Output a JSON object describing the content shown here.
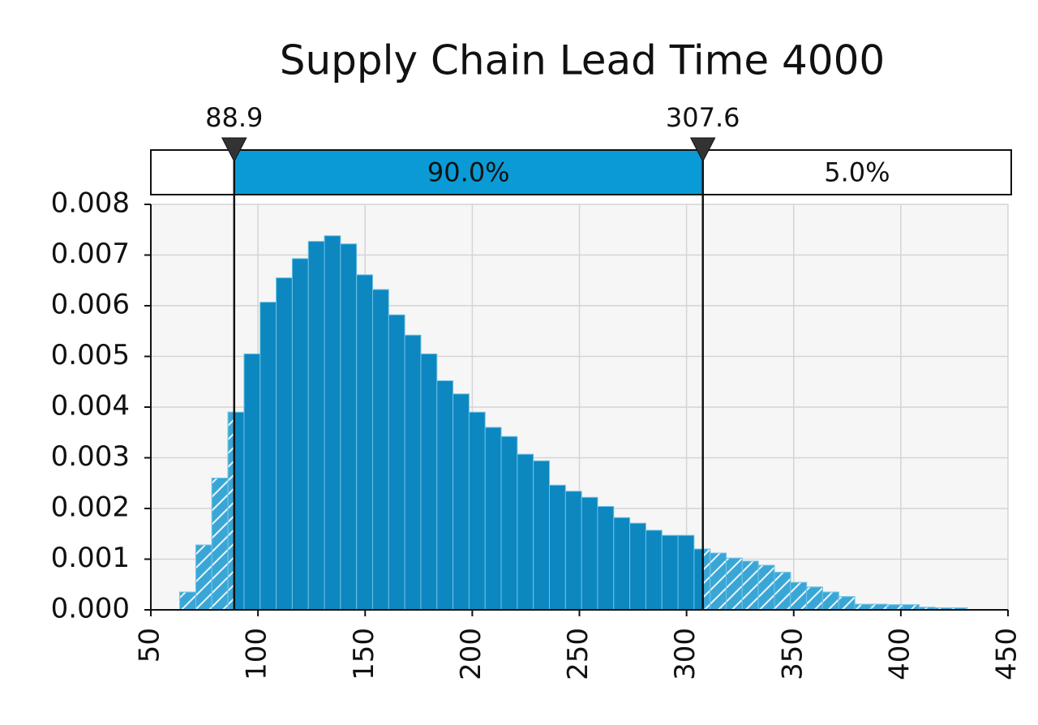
{
  "chart_data": {
    "type": "histogram",
    "title": "Supply Chain Lead Time 4000",
    "bins": [
      63.5,
      71,
      78.5,
      86,
      93.5,
      101,
      108.5,
      116,
      123.5,
      131,
      138.5,
      146,
      153.5,
      161,
      168.5,
      176,
      183.5,
      191,
      198.5,
      206,
      213.5,
      221,
      228.5,
      236,
      243.5,
      251,
      258.5,
      266,
      273.5,
      281,
      288.5,
      296,
      303.5,
      311,
      318.5,
      326,
      333.5,
      341,
      348.5,
      356,
      363.5,
      371,
      378.5,
      386,
      393.5,
      401,
      408.5,
      416,
      423.5,
      431
    ],
    "values": [
      0.00035,
      0.00128,
      0.0026,
      0.0039,
      0.00505,
      0.00607,
      0.00655,
      0.00693,
      0.00727,
      0.00738,
      0.00722,
      0.00661,
      0.00632,
      0.00582,
      0.00542,
      0.00505,
      0.00452,
      0.00426,
      0.0039,
      0.0036,
      0.00342,
      0.00307,
      0.00294,
      0.00246,
      0.00234,
      0.00222,
      0.00204,
      0.00182,
      0.00171,
      0.00157,
      0.00147,
      0.00147,
      0.0012,
      0.00112,
      0.00102,
      0.00096,
      0.00088,
      0.00074,
      0.00054,
      0.00045,
      0.00035,
      0.00026,
      0.00011,
      0.00011,
      0.0001,
      0.0001,
      5e-05,
      4e-05,
      4e-05
    ],
    "color": "#0d87c0",
    "xlim": [
      50,
      450
    ],
    "xticks": [
      50,
      100,
      150,
      200,
      250,
      300,
      350,
      400,
      450
    ],
    "ylim": [
      0,
      0.008
    ],
    "yticks": [
      {
        "value": 0,
        "label": "0.000"
      },
      {
        "value": 0.001,
        "label": "0.001"
      },
      {
        "value": 0.002,
        "label": "0.002"
      },
      {
        "value": 0.003,
        "label": "0.003"
      },
      {
        "value": 0.004,
        "label": "0.004"
      },
      {
        "value": 0.005,
        "label": "0.005"
      },
      {
        "value": 0.006,
        "label": "0.006"
      },
      {
        "value": 0.007,
        "label": "0.007"
      },
      {
        "value": 0.008,
        "label": "0.008"
      }
    ],
    "grid": true,
    "delimiters": [
      88.9,
      307.6
    ],
    "band": {
      "values": [
        90,
        5
      ],
      "value_labels": [
        "90.0%",
        "5.0%"
      ]
    }
  }
}
